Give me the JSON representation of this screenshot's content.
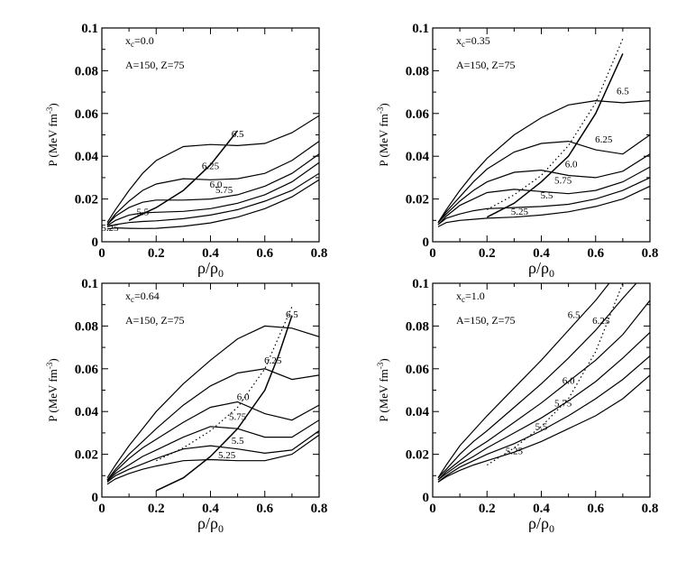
{
  "chart_data": [
    {
      "type": "line",
      "title": "",
      "xlabel": "ρ/ρ0",
      "ylabel": "P (MeV fm-3)",
      "xlim": [
        0,
        0.8
      ],
      "ylim": [
        0,
        0.1
      ],
      "xticks": [
        "0",
        "0.2",
        "0.4",
        "0.6",
        "0.8"
      ],
      "yticks": [
        "0",
        "0.02",
        "0.04",
        "0.06",
        "0.08",
        "0.1"
      ],
      "annotations": {
        "xc": "x",
        "xc_sub": "c",
        "xc_value": "=0.0",
        "nucleus": "A=150, Z=75"
      },
      "series": [
        {
          "name": "5.25",
          "x": [
            0.02,
            0.05,
            0.1,
            0.15,
            0.2,
            0.3,
            0.4,
            0.5,
            0.6,
            0.7,
            0.8
          ],
          "y": [
            0.006,
            0.0065,
            0.0063,
            0.0062,
            0.0063,
            0.0072,
            0.0088,
            0.0115,
            0.0155,
            0.021,
            0.029
          ]
        },
        {
          "name": "5.5",
          "x": [
            0.02,
            0.05,
            0.1,
            0.15,
            0.2,
            0.3,
            0.4,
            0.5,
            0.6,
            0.7,
            0.8
          ],
          "y": [
            0.007,
            0.008,
            0.009,
            0.0095,
            0.0098,
            0.0108,
            0.0125,
            0.015,
            0.019,
            0.024,
            0.032
          ]
        },
        {
          "name": "5.75",
          "x": [
            0.02,
            0.05,
            0.1,
            0.15,
            0.2,
            0.3,
            0.4,
            0.5,
            0.6,
            0.7,
            0.8
          ],
          "y": [
            0.0075,
            0.01,
            0.0125,
            0.0135,
            0.0138,
            0.0142,
            0.0155,
            0.018,
            0.022,
            0.028,
            0.037
          ]
        },
        {
          "name": "6.0",
          "x": [
            0.02,
            0.05,
            0.1,
            0.15,
            0.2,
            0.3,
            0.4,
            0.5,
            0.6,
            0.7,
            0.8
          ],
          "y": [
            0.008,
            0.012,
            0.016,
            0.0185,
            0.0195,
            0.0195,
            0.02,
            0.022,
            0.026,
            0.032,
            0.041
          ]
        },
        {
          "name": "6.25",
          "x": [
            0.02,
            0.05,
            0.1,
            0.15,
            0.2,
            0.3,
            0.4,
            0.5,
            0.6,
            0.7,
            0.8
          ],
          "y": [
            0.008,
            0.013,
            0.019,
            0.024,
            0.027,
            0.0295,
            0.029,
            0.0295,
            0.032,
            0.038,
            0.047
          ]
        },
        {
          "name": "6.5",
          "x": [
            0.02,
            0.05,
            0.1,
            0.15,
            0.2,
            0.3,
            0.4,
            0.5,
            0.6,
            0.7,
            0.8
          ],
          "y": [
            0.009,
            0.015,
            0.024,
            0.032,
            0.038,
            0.0445,
            0.0455,
            0.045,
            0.046,
            0.051,
            0.059
          ]
        }
      ],
      "boundary": {
        "style": "solid",
        "x": [
          0.1,
          0.2,
          0.3,
          0.4,
          0.5
        ],
        "y": [
          0.01,
          0.016,
          0.024,
          0.036,
          0.052
        ]
      }
    },
    {
      "type": "line",
      "title": "",
      "xlabel": "ρ/ρ0",
      "ylabel": "P (MeV fm-3)",
      "xlim": [
        0,
        0.8
      ],
      "ylim": [
        0,
        0.1
      ],
      "xticks": [
        "0",
        "0.2",
        "0.4",
        "0.6",
        "0.8"
      ],
      "yticks": [
        "0",
        "0.02",
        "0.04",
        "0.06",
        "0.08",
        "0.1"
      ],
      "annotations": {
        "xc": "x",
        "xc_sub": "c",
        "xc_value": "=0.35",
        "nucleus": "A=150, Z=75"
      },
      "series": [
        {
          "name": "5.25",
          "x": [
            0.02,
            0.05,
            0.1,
            0.15,
            0.2,
            0.3,
            0.4,
            0.5,
            0.6,
            0.7,
            0.8
          ],
          "y": [
            0.007,
            0.009,
            0.01,
            0.0105,
            0.011,
            0.0115,
            0.0125,
            0.014,
            0.0165,
            0.02,
            0.026
          ]
        },
        {
          "name": "5.5",
          "x": [
            0.02,
            0.05,
            0.1,
            0.15,
            0.2,
            0.3,
            0.4,
            0.5,
            0.6,
            0.7,
            0.8
          ],
          "y": [
            0.008,
            0.011,
            0.013,
            0.0145,
            0.0155,
            0.016,
            0.0165,
            0.0175,
            0.02,
            0.024,
            0.03
          ]
        },
        {
          "name": "5.75",
          "x": [
            0.02,
            0.05,
            0.1,
            0.15,
            0.2,
            0.3,
            0.4,
            0.5,
            0.6,
            0.7,
            0.8
          ],
          "y": [
            0.008,
            0.012,
            0.017,
            0.02,
            0.023,
            0.0245,
            0.0235,
            0.0225,
            0.024,
            0.028,
            0.035
          ]
        },
        {
          "name": "6.0",
          "x": [
            0.02,
            0.05,
            0.1,
            0.15,
            0.2,
            0.3,
            0.4,
            0.5,
            0.6,
            0.7,
            0.8
          ],
          "y": [
            0.009,
            0.013,
            0.019,
            0.024,
            0.028,
            0.0325,
            0.0335,
            0.031,
            0.03,
            0.033,
            0.041
          ]
        },
        {
          "name": "6.25",
          "x": [
            0.02,
            0.05,
            0.1,
            0.15,
            0.2,
            0.3,
            0.4,
            0.5,
            0.6,
            0.7,
            0.8
          ],
          "y": [
            0.009,
            0.014,
            0.021,
            0.028,
            0.034,
            0.042,
            0.046,
            0.047,
            0.043,
            0.041,
            0.05
          ]
        },
        {
          "name": "6.5",
          "x": [
            0.02,
            0.05,
            0.1,
            0.15,
            0.2,
            0.3,
            0.4,
            0.5,
            0.6,
            0.7,
            0.8
          ],
          "y": [
            0.009,
            0.015,
            0.024,
            0.032,
            0.039,
            0.05,
            0.058,
            0.064,
            0.066,
            0.065,
            0.066
          ]
        }
      ],
      "boundary": {
        "style": "solid",
        "x": [
          0.2,
          0.3,
          0.4,
          0.5,
          0.6,
          0.7
        ],
        "y": [
          0.0115,
          0.018,
          0.028,
          0.04,
          0.06,
          0.088
        ]
      },
      "boundary2": {
        "style": "dotted",
        "x": [
          0.2,
          0.3,
          0.4,
          0.5,
          0.6,
          0.7
        ],
        "y": [
          0.015,
          0.022,
          0.031,
          0.045,
          0.065,
          0.095
        ]
      }
    },
    {
      "type": "line",
      "title": "",
      "xlabel": "ρ/ρ0",
      "ylabel": "P (MeV fm-3)",
      "xlim": [
        0,
        0.8
      ],
      "ylim": [
        0,
        0.1
      ],
      "xticks": [
        "0",
        "0.2",
        "0.4",
        "0.6",
        "0.8"
      ],
      "yticks": [
        "0",
        "0.02",
        "0.04",
        "0.06",
        "0.08",
        "0.1"
      ],
      "annotations": {
        "xc": "x",
        "xc_sub": "c",
        "xc_value": "=0.64",
        "nucleus": "A=150, Z=75"
      },
      "series": [
        {
          "name": "5.25",
          "x": [
            0.02,
            0.05,
            0.1,
            0.15,
            0.2,
            0.3,
            0.4,
            0.5,
            0.6,
            0.7,
            0.8
          ],
          "y": [
            0.006,
            0.0085,
            0.011,
            0.013,
            0.0145,
            0.017,
            0.0175,
            0.017,
            0.017,
            0.02,
            0.029
          ]
        },
        {
          "name": "5.5",
          "x": [
            0.02,
            0.05,
            0.1,
            0.15,
            0.2,
            0.3,
            0.4,
            0.5,
            0.6,
            0.7,
            0.8
          ],
          "y": [
            0.007,
            0.01,
            0.013,
            0.0155,
            0.018,
            0.0225,
            0.024,
            0.0225,
            0.0205,
            0.022,
            0.031
          ]
        },
        {
          "name": "5.75",
          "x": [
            0.02,
            0.05,
            0.1,
            0.15,
            0.2,
            0.3,
            0.4,
            0.5,
            0.6,
            0.7,
            0.8
          ],
          "y": [
            0.0075,
            0.011,
            0.015,
            0.019,
            0.022,
            0.028,
            0.033,
            0.032,
            0.028,
            0.028,
            0.036
          ]
        },
        {
          "name": "6.0",
          "x": [
            0.02,
            0.05,
            0.1,
            0.15,
            0.2,
            0.3,
            0.4,
            0.5,
            0.6,
            0.7,
            0.8
          ],
          "y": [
            0.008,
            0.012,
            0.018,
            0.023,
            0.027,
            0.035,
            0.042,
            0.0445,
            0.039,
            0.036,
            0.043
          ]
        },
        {
          "name": "6.25",
          "x": [
            0.02,
            0.05,
            0.1,
            0.15,
            0.2,
            0.3,
            0.4,
            0.5,
            0.6,
            0.7,
            0.8
          ],
          "y": [
            0.008,
            0.013,
            0.02,
            0.026,
            0.032,
            0.043,
            0.052,
            0.058,
            0.06,
            0.055,
            0.057
          ]
        },
        {
          "name": "6.5",
          "x": [
            0.02,
            0.05,
            0.1,
            0.15,
            0.2,
            0.3,
            0.4,
            0.5,
            0.6,
            0.7,
            0.8
          ],
          "y": [
            0.009,
            0.015,
            0.024,
            0.032,
            0.04,
            0.053,
            0.064,
            0.074,
            0.08,
            0.079,
            0.075
          ]
        }
      ],
      "boundary": {
        "style": "solid",
        "x": [
          0.2,
          0.3,
          0.4,
          0.5,
          0.6,
          0.65,
          0.7
        ],
        "y": [
          0.003,
          0.009,
          0.019,
          0.032,
          0.05,
          0.066,
          0.085
        ]
      },
      "boundary2": {
        "style": "dotted",
        "x": [
          0.2,
          0.3,
          0.4,
          0.5,
          0.6,
          0.7
        ],
        "y": [
          0.017,
          0.023,
          0.031,
          0.042,
          0.06,
          0.089
        ]
      }
    },
    {
      "type": "line",
      "title": "",
      "xlabel": "ρ/ρ0",
      "ylabel": "P (MeV fm-3)",
      "xlim": [
        0,
        0.8
      ],
      "ylim": [
        0,
        0.1
      ],
      "xticks": [
        "0",
        "0.2",
        "0.4",
        "0.6",
        "0.8"
      ],
      "yticks": [
        "0",
        "0.02",
        "0.04",
        "0.06",
        "0.08",
        "0.1"
      ],
      "annotations": {
        "xc": "x",
        "xc_sub": "c",
        "xc_value": "=1.0",
        "nucleus": "A=150, Z=75"
      },
      "series": [
        {
          "name": "5.25",
          "x": [
            0.02,
            0.05,
            0.1,
            0.15,
            0.2,
            0.3,
            0.4,
            0.5,
            0.6,
            0.7,
            0.8
          ],
          "y": [
            0.007,
            0.0095,
            0.0125,
            0.015,
            0.017,
            0.021,
            0.026,
            0.032,
            0.038,
            0.046,
            0.057
          ]
        },
        {
          "name": "5.5",
          "x": [
            0.02,
            0.05,
            0.1,
            0.15,
            0.2,
            0.3,
            0.4,
            0.5,
            0.6,
            0.7,
            0.8
          ],
          "y": [
            0.007,
            0.01,
            0.014,
            0.017,
            0.02,
            0.025,
            0.031,
            0.038,
            0.046,
            0.055,
            0.066
          ]
        },
        {
          "name": "5.75",
          "x": [
            0.02,
            0.05,
            0.1,
            0.15,
            0.2,
            0.3,
            0.4,
            0.5,
            0.6,
            0.7,
            0.8
          ],
          "y": [
            0.008,
            0.011,
            0.0155,
            0.019,
            0.023,
            0.03,
            0.037,
            0.045,
            0.054,
            0.065,
            0.077
          ]
        },
        {
          "name": "6.0",
          "x": [
            0.02,
            0.05,
            0.1,
            0.15,
            0.2,
            0.3,
            0.4,
            0.5,
            0.6,
            0.7,
            0.8
          ],
          "y": [
            0.008,
            0.012,
            0.017,
            0.022,
            0.026,
            0.035,
            0.044,
            0.054,
            0.064,
            0.076,
            0.092
          ]
        },
        {
          "name": "6.25",
          "x": [
            0.02,
            0.05,
            0.1,
            0.15,
            0.2,
            0.3,
            0.4,
            0.5,
            0.6,
            0.7,
            0.75
          ],
          "y": [
            0.009,
            0.013,
            0.02,
            0.026,
            0.031,
            0.042,
            0.053,
            0.065,
            0.078,
            0.093,
            0.1
          ]
        },
        {
          "name": "6.5",
          "x": [
            0.02,
            0.05,
            0.1,
            0.15,
            0.2,
            0.3,
            0.4,
            0.5,
            0.6,
            0.65
          ],
          "y": [
            0.009,
            0.015,
            0.024,
            0.031,
            0.038,
            0.051,
            0.064,
            0.078,
            0.092,
            0.1
          ]
        }
      ],
      "boundary2": {
        "style": "dotted",
        "x": [
          0.2,
          0.3,
          0.4,
          0.5,
          0.6,
          0.7
        ],
        "y": [
          0.015,
          0.023,
          0.033,
          0.046,
          0.068,
          0.1
        ]
      }
    }
  ]
}
